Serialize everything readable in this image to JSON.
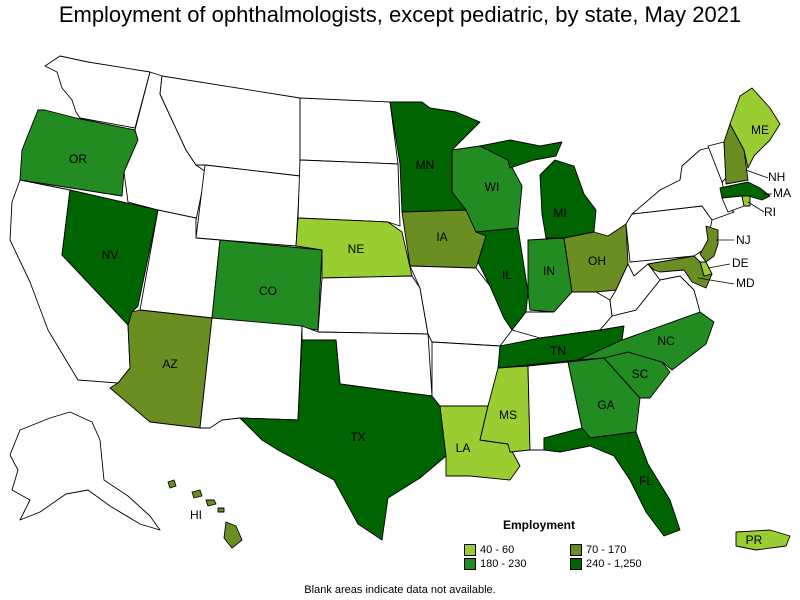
{
  "title": "Employment of ophthalmologists, except pediatric, by state, May 2021",
  "note": "Blank areas indicate data not available.",
  "colors": {
    "40-60": "#9acd32",
    "70-170": "#6b8e23",
    "180-230": "#228b22",
    "240-1250": "#006400",
    "none": "#ffffff"
  },
  "legend": {
    "title": "Employment",
    "items": [
      {
        "label": "40 - 60",
        "color": "#9acd32"
      },
      {
        "label": "70 - 170",
        "color": "#6b8e23"
      },
      {
        "label": "180 - 230",
        "color": "#228b22"
      },
      {
        "label": "240 - 1,250",
        "color": "#006400"
      }
    ]
  },
  "states": {
    "WA": {
      "label": "",
      "bin": "none"
    },
    "OR": {
      "label": "OR",
      "bin": "180-230"
    },
    "CA": {
      "label": "",
      "bin": "none"
    },
    "NV": {
      "label": "NV",
      "bin": "240-1250"
    },
    "ID": {
      "label": "",
      "bin": "none"
    },
    "MT": {
      "label": "",
      "bin": "none"
    },
    "WY": {
      "label": "",
      "bin": "none"
    },
    "UT": {
      "label": "",
      "bin": "none"
    },
    "AZ": {
      "label": "AZ",
      "bin": "70-170"
    },
    "CO": {
      "label": "CO",
      "bin": "180-230"
    },
    "NM": {
      "label": "",
      "bin": "none"
    },
    "ND": {
      "label": "",
      "bin": "none"
    },
    "SD": {
      "label": "",
      "bin": "none"
    },
    "NE": {
      "label": "NE",
      "bin": "40-60"
    },
    "KS": {
      "label": "",
      "bin": "none"
    },
    "OK": {
      "label": "",
      "bin": "none"
    },
    "TX": {
      "label": "TX",
      "bin": "240-1250"
    },
    "MN": {
      "label": "MN",
      "bin": "240-1250"
    },
    "IA": {
      "label": "IA",
      "bin": "70-170"
    },
    "MO": {
      "label": "",
      "bin": "none"
    },
    "AR": {
      "label": "",
      "bin": "none"
    },
    "LA": {
      "label": "LA",
      "bin": "40-60"
    },
    "WI": {
      "label": "WI",
      "bin": "180-230"
    },
    "IL": {
      "label": "IL",
      "bin": "240-1250"
    },
    "MI": {
      "label": "MI",
      "bin": "240-1250"
    },
    "IN": {
      "label": "IN",
      "bin": "180-230"
    },
    "OH": {
      "label": "OH",
      "bin": "70-170"
    },
    "KY": {
      "label": "",
      "bin": "none"
    },
    "TN": {
      "label": "TN",
      "bin": "240-1250"
    },
    "MS": {
      "label": "MS",
      "bin": "40-60"
    },
    "AL": {
      "label": "",
      "bin": "none"
    },
    "GA": {
      "label": "GA",
      "bin": "180-230"
    },
    "FL": {
      "label": "FL",
      "bin": "240-1250"
    },
    "SC": {
      "label": "SC",
      "bin": "180-230"
    },
    "NC": {
      "label": "NC",
      "bin": "180-230"
    },
    "VA": {
      "label": "",
      "bin": "none"
    },
    "WV": {
      "label": "",
      "bin": "none"
    },
    "PA": {
      "label": "",
      "bin": "none"
    },
    "NY": {
      "label": "",
      "bin": "none"
    },
    "VT": {
      "label": "",
      "bin": "none"
    },
    "NH": {
      "label": "NH",
      "bin": "70-170"
    },
    "ME": {
      "label": "ME",
      "bin": "40-60"
    },
    "MA": {
      "label": "MA",
      "bin": "240-1250"
    },
    "CT": {
      "label": "",
      "bin": "none"
    },
    "RI": {
      "label": "RI",
      "bin": "40-60"
    },
    "NJ": {
      "label": "NJ",
      "bin": "70-170"
    },
    "DE": {
      "label": "DE",
      "bin": "40-60"
    },
    "MD": {
      "label": "MD",
      "bin": "70-170"
    },
    "AK": {
      "label": "",
      "bin": "none"
    },
    "HI": {
      "label": "HI",
      "bin": "70-170"
    },
    "PR": {
      "label": "PR",
      "bin": "40-60"
    }
  }
}
